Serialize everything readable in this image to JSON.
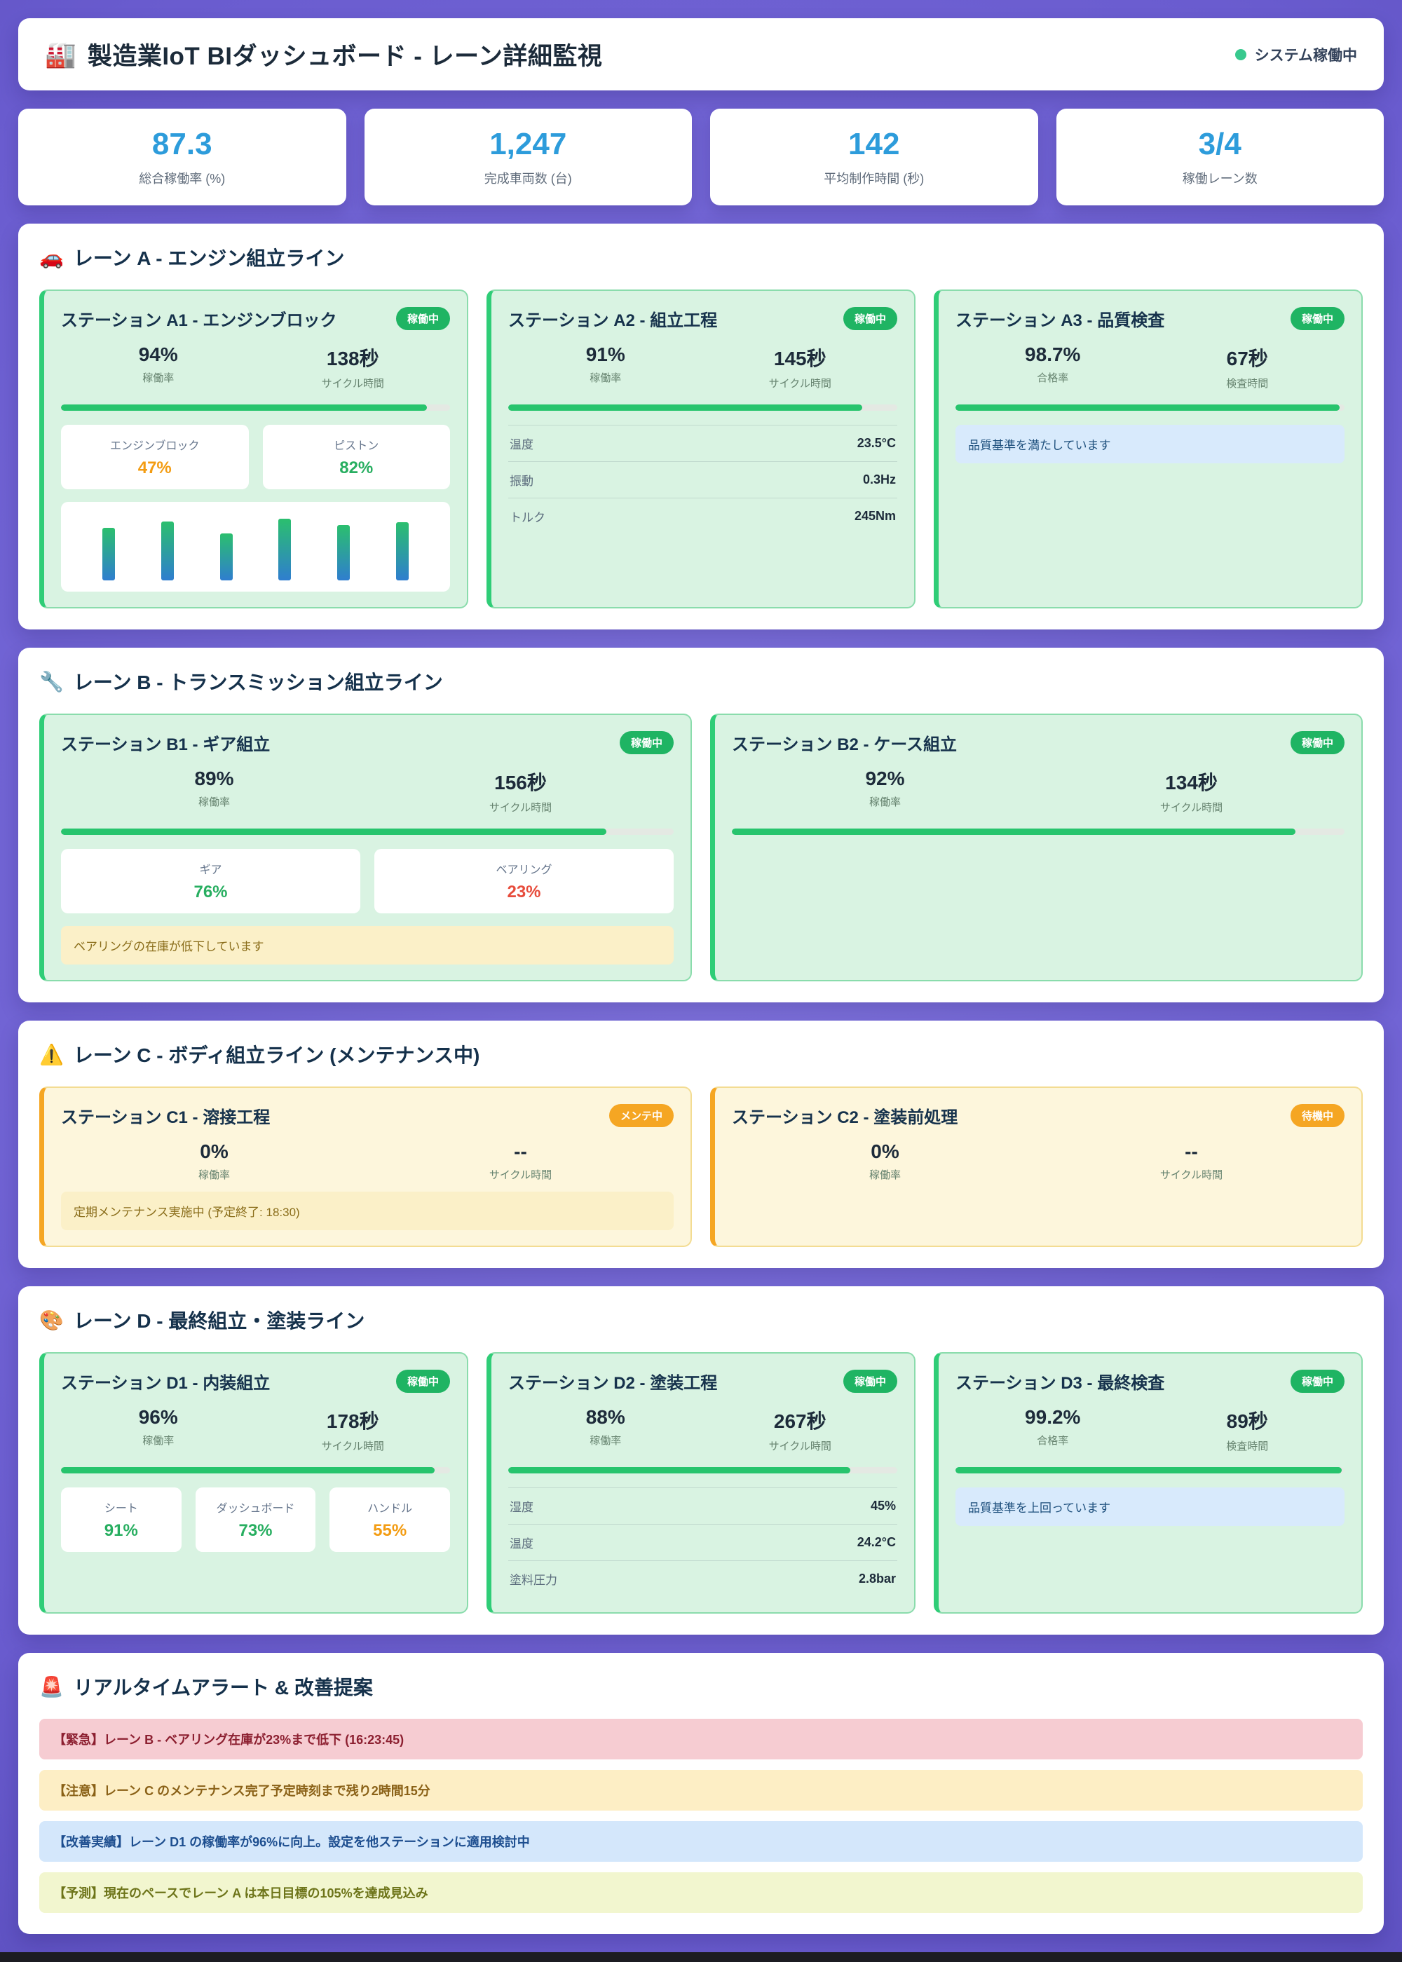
{
  "header": {
    "icon": "🏭",
    "title": "製造業IoT BIダッシュボード - レーン詳細監視",
    "status_label": "システム稼働中",
    "status_color": "#38c98e"
  },
  "kpis": [
    {
      "value": "87.3",
      "label": "総合稼働率 (%)"
    },
    {
      "value": "1,247",
      "label": "完成車両数 (台)"
    },
    {
      "value": "142",
      "label": "平均制作時間 (秒)"
    },
    {
      "value": "3/4",
      "label": "稼働レーン数"
    }
  ],
  "lanes": [
    {
      "icon": "🚗",
      "title": "レーン A - エンジン組立ライン",
      "stations": [
        {
          "title": "ステーション A1 - エンジンブロック",
          "badge": "稼働中",
          "badge_state": "running",
          "metrics": [
            {
              "value": "94%",
              "label": "稼働率"
            },
            {
              "value": "138秒",
              "label": "サイクル時間"
            }
          ],
          "progress": "94%",
          "parts": [
            {
              "name": "エンジンブロック",
              "value": "47%",
              "state": "warn"
            },
            {
              "name": "ピストン",
              "value": "82%",
              "state": "ok"
            }
          ],
          "chart": {
            "type": "bar",
            "values": [
              78,
              88,
              70,
              92,
              82,
              86
            ],
            "heights": [
              "78%",
              "88%",
              "70%",
              "92%",
              "82%",
              "86%"
            ]
          }
        },
        {
          "title": "ステーション A2 - 組立工程",
          "badge": "稼働中",
          "badge_state": "running",
          "metrics": [
            {
              "value": "91%",
              "label": "稼働率"
            },
            {
              "value": "145秒",
              "label": "サイクル時間"
            }
          ],
          "progress": "91%",
          "sensors": [
            {
              "name": "温度",
              "value": "23.5°C"
            },
            {
              "name": "振動",
              "value": "0.3Hz"
            },
            {
              "name": "トルク",
              "value": "245Nm"
            }
          ]
        },
        {
          "title": "ステーション A3 - 品質検査",
          "badge": "稼働中",
          "badge_state": "running",
          "metrics": [
            {
              "value": "98.7%",
              "label": "合格率"
            },
            {
              "value": "67秒",
              "label": "検査時間"
            }
          ],
          "progress": "98.7%",
          "note": "品質基準を満たしています"
        }
      ]
    },
    {
      "icon": "🔧",
      "title": "レーン B - トランスミッション組立ライン",
      "stations": [
        {
          "title": "ステーション B1 - ギア組立",
          "badge": "稼働中",
          "badge_state": "running",
          "metrics": [
            {
              "value": "89%",
              "label": "稼働率"
            },
            {
              "value": "156秒",
              "label": "サイクル時間"
            }
          ],
          "progress": "89%",
          "parts": [
            {
              "name": "ギア",
              "value": "76%",
              "state": "ok"
            },
            {
              "name": "ベアリング",
              "value": "23%",
              "state": "low"
            }
          ],
          "alert": "ベアリングの在庫が低下しています"
        },
        {
          "title": "ステーション B2 - ケース組立",
          "badge": "稼働中",
          "badge_state": "running",
          "metrics": [
            {
              "value": "92%",
              "label": "稼働率"
            },
            {
              "value": "134秒",
              "label": "サイクル時間"
            }
          ],
          "progress": "92%"
        }
      ]
    },
    {
      "icon": "⚠️",
      "title": "レーン C - ボディ組立ライン (メンテナンス中)",
      "stations": [
        {
          "title": "ステーション C1 - 溶接工程",
          "badge": "メンテ中",
          "badge_state": "maint",
          "metrics": [
            {
              "value": "0%",
              "label": "稼働率"
            },
            {
              "value": "--",
              "label": "サイクル時間"
            }
          ],
          "alert": "定期メンテナンス実施中 (予定終了: 18:30)"
        },
        {
          "title": "ステーション C2 - 塗装前処理",
          "badge": "待機中",
          "badge_state": "idle",
          "metrics": [
            {
              "value": "0%",
              "label": "稼働率"
            },
            {
              "value": "--",
              "label": "サイクル時間"
            }
          ]
        }
      ]
    },
    {
      "icon": "🎨",
      "title": "レーン D - 最終組立・塗装ライン",
      "stations": [
        {
          "title": "ステーション D1 - 内装組立",
          "badge": "稼働中",
          "badge_state": "running",
          "metrics": [
            {
              "value": "96%",
              "label": "稼働率"
            },
            {
              "value": "178秒",
              "label": "サイクル時間"
            }
          ],
          "progress": "96%",
          "parts": [
            {
              "name": "シート",
              "value": "91%",
              "state": "ok"
            },
            {
              "name": "ダッシュボード",
              "value": "73%",
              "state": "ok"
            },
            {
              "name": "ハンドル",
              "value": "55%",
              "state": "warn"
            }
          ]
        },
        {
          "title": "ステーション D2 - 塗装工程",
          "badge": "稼働中",
          "badge_state": "running",
          "metrics": [
            {
              "value": "88%",
              "label": "稼働率"
            },
            {
              "value": "267秒",
              "label": "サイクル時間"
            }
          ],
          "progress": "88%",
          "sensors": [
            {
              "name": "湿度",
              "value": "45%"
            },
            {
              "name": "温度",
              "value": "24.2°C"
            },
            {
              "name": "塗料圧力",
              "value": "2.8bar"
            }
          ]
        },
        {
          "title": "ステーション D3 - 最終検査",
          "badge": "稼働中",
          "badge_state": "running",
          "metrics": [
            {
              "value": "99.2%",
              "label": "合格率"
            },
            {
              "value": "89秒",
              "label": "検査時間"
            }
          ],
          "progress": "99.2%",
          "note": "品質基準を上回っています"
        }
      ]
    }
  ],
  "alerts_section": {
    "icon": "🚨",
    "title": "リアルタイムアラート & 改善提案",
    "alerts": [
      {
        "type": "critical",
        "text": "【緊急】レーン B - ベアリング在庫が23%まで低下 (16:23:45)"
      },
      {
        "type": "warning",
        "text": "【注意】レーン C のメンテナンス完了予定時刻まで残り2時間15分"
      },
      {
        "type": "info",
        "text": "【改善実績】レーン D1 の稼働率が96%に向上。設定を他ステーションに適用検討中"
      },
      {
        "type": "forecast",
        "text": "【予測】現在のペースでレーン A は本日目標の105%を達成見込み"
      }
    ]
  }
}
